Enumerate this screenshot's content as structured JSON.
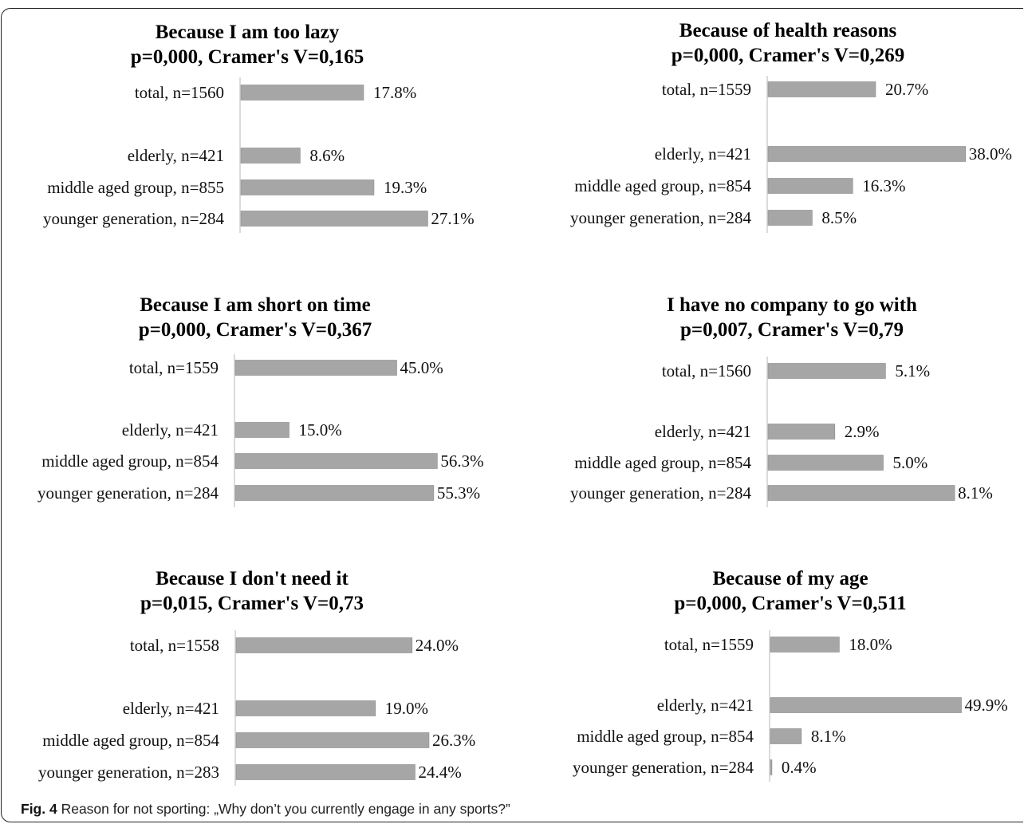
{
  "caption": {
    "label": "Fig. 4",
    "text": "Reason for not sporting: „Why don’t you currently engage in any sports?”"
  },
  "colors": {
    "bar": "#a6a6a6",
    "axis": "#cfcfcf"
  },
  "chart_data": [
    {
      "type": "bar",
      "orientation": "horizontal",
      "title": "Because I am too lazy",
      "subtitle": "p=0,000, Cramer's V=0,165",
      "categories": [
        "total, n=1560",
        "elderly, n=421",
        "middle aged group, n=855",
        "younger generation, n=284"
      ],
      "values": [
        17.8,
        8.6,
        19.3,
        27.1
      ],
      "labels": [
        "17.8%",
        "8.6%",
        "19.3%",
        "27.1%"
      ],
      "xlim": [
        0,
        40
      ]
    },
    {
      "type": "bar",
      "orientation": "horizontal",
      "title": "Because of health reasons",
      "subtitle": "p=0,000, Cramer's V=0,269",
      "categories": [
        "total, n=1559",
        "elderly, n=421",
        "middle aged group, n=854",
        "younger generation, n=284"
      ],
      "values": [
        20.7,
        38.0,
        16.3,
        8.5
      ],
      "labels": [
        "20.7%",
        "38.0%",
        "16.3%",
        "8.5%"
      ],
      "xlim": [
        0,
        40
      ]
    },
    {
      "type": "bar",
      "orientation": "horizontal",
      "title": "Because I am short on time",
      "subtitle": "p=0,000, Cramer's V=0,367",
      "categories": [
        "total, n=1559",
        "elderly, n=421",
        "middle aged group, n=854",
        "younger generation, n=284"
      ],
      "values": [
        45.0,
        15.0,
        56.3,
        55.3
      ],
      "labels": [
        "45.0%",
        "15.0%",
        "56.3%",
        "55.3%"
      ],
      "xlim": [
        0,
        60
      ]
    },
    {
      "type": "bar",
      "orientation": "horizontal",
      "title": "I have no company to go with",
      "subtitle": "p=0,007, Cramer's V=0,79",
      "categories": [
        "total, n=1560",
        "elderly, n=421",
        "middle aged group, n=854",
        "younger generation, n=284"
      ],
      "values": [
        5.1,
        2.9,
        5.0,
        8.1
      ],
      "labels": [
        "5.1%",
        "2.9%",
        "5.0%",
        "8.1%"
      ],
      "xlim": [
        0,
        9
      ]
    },
    {
      "type": "bar",
      "orientation": "horizontal",
      "title": "Because I don't need it",
      "subtitle": "p=0,015, Cramer's V=0,73",
      "categories": [
        "total, n=1558",
        "elderly, n=421",
        "middle aged group, n=854",
        "younger generation, n=283"
      ],
      "values": [
        24.0,
        19.0,
        26.3,
        24.4
      ],
      "labels": [
        "24.0%",
        "19.0%",
        "26.3%",
        "24.4%"
      ],
      "xlim": [
        0,
        30
      ]
    },
    {
      "type": "bar",
      "orientation": "horizontal",
      "title": "Because of my age",
      "subtitle": "p=0,000, Cramer's V=0,511",
      "categories": [
        "total, n=1559",
        "elderly, n=421",
        "middle aged group, n=854",
        "younger generation, n=284"
      ],
      "values": [
        18.0,
        49.9,
        8.1,
        0.4
      ],
      "labels": [
        "18.0%",
        "49.9%",
        "8.1%",
        "0.4%"
      ],
      "xlim": [
        0,
        50
      ]
    }
  ]
}
